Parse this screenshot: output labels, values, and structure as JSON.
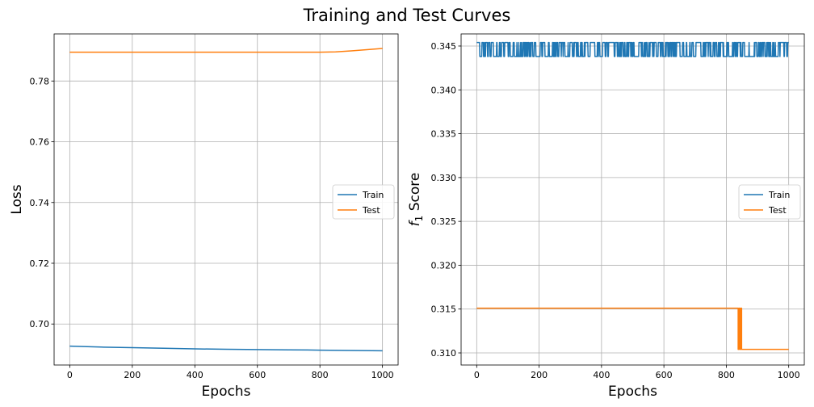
{
  "figure": {
    "title": "Training and Test Curves"
  },
  "chart_data": [
    {
      "type": "line",
      "xlabel": "Epochs",
      "ylabel": "Loss",
      "xlim": [
        -50,
        1050
      ],
      "ylim": [
        0.6865,
        0.7955
      ],
      "xticks": [
        0,
        200,
        400,
        600,
        800,
        1000
      ],
      "yticks": [
        0.7,
        0.72,
        0.74,
        0.76,
        0.78
      ],
      "ytick_labels": [
        "0.70",
        "0.72",
        "0.74",
        "0.76",
        "0.78"
      ],
      "grid": true,
      "legend": "center-right",
      "series": [
        {
          "name": "Train",
          "color": "#1f77b4",
          "x": [
            0,
            100,
            200,
            300,
            400,
            500,
            600,
            700,
            800,
            900,
            1000
          ],
          "y": [
            0.6927,
            0.6924,
            0.6922,
            0.692,
            0.6918,
            0.6917,
            0.6916,
            0.6915,
            0.6914,
            0.6913,
            0.6912
          ]
        },
        {
          "name": "Test",
          "color": "#ff7f0e",
          "x": [
            0,
            200,
            400,
            600,
            800,
            850,
            900,
            950,
            1000
          ],
          "y": [
            0.7895,
            0.7895,
            0.7895,
            0.7895,
            0.7895,
            0.7896,
            0.7899,
            0.7903,
            0.7907
          ]
        }
      ]
    },
    {
      "type": "line",
      "xlabel": "Epochs",
      "ylabel": "f1 Score",
      "ylabel_main": "f",
      "ylabel_sub": "1",
      "ylabel_rest": " Score",
      "xlim": [
        -50,
        1050
      ],
      "ylim": [
        0.30862,
        0.34638
      ],
      "xticks": [
        0,
        200,
        400,
        600,
        800,
        1000
      ],
      "yticks": [
        0.31,
        0.315,
        0.32,
        0.325,
        0.33,
        0.335,
        0.34,
        0.345
      ],
      "ytick_labels": [
        "0.310",
        "0.315",
        "0.320",
        "0.325",
        "0.330",
        "0.335",
        "0.340",
        "0.345"
      ],
      "grid": true,
      "legend": "center-right",
      "series": [
        {
          "name": "Train",
          "color": "#1f77b4",
          "style": "oscillating",
          "y_low": 0.3438,
          "y_high": 0.3454,
          "x_start": 0,
          "x_end": 1000
        },
        {
          "name": "Test",
          "color": "#ff7f0e",
          "x": [
            0,
            838,
            838,
            840,
            840,
            843,
            843,
            846,
            846,
            849,
            849,
            1000
          ],
          "y": [
            0.3151,
            0.3151,
            0.3104,
            0.3104,
            0.3151,
            0.3151,
            0.3104,
            0.3104,
            0.3151,
            0.3151,
            0.3104,
            0.3104
          ]
        }
      ]
    }
  ]
}
